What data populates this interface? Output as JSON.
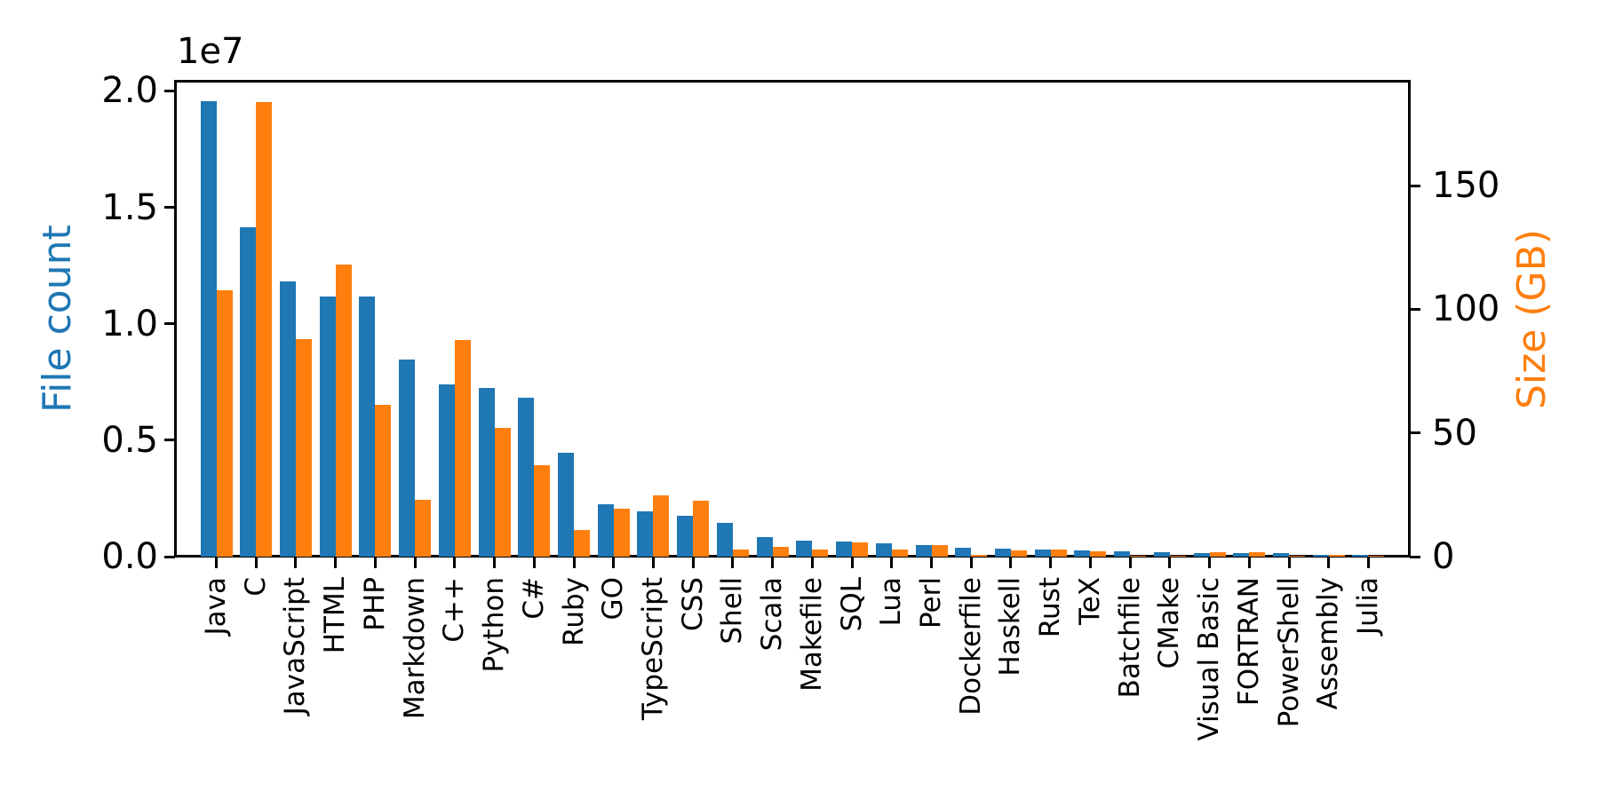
{
  "chart_data": {
    "type": "bar",
    "title": "",
    "categories": [
      "Java",
      "C",
      "JavaScript",
      "HTML",
      "PHP",
      "Markdown",
      "C++",
      "Python",
      "C#",
      "Ruby",
      "GO",
      "TypeScript",
      "CSS",
      "Shell",
      "Scala",
      "Makefile",
      "SQL",
      "Lua",
      "Perl",
      "Dockerfile",
      "Haskell",
      "Rust",
      "TeX",
      "Batchfile",
      "CMake",
      "Visual Basic",
      "FORTRAN",
      "PowerShell",
      "Assembly",
      "Julia"
    ],
    "series": [
      {
        "name": "File count",
        "axis": "left",
        "color": "#1f77b4",
        "values": [
          19548000,
          14143000,
          11840000,
          11179000,
          11178000,
          8465000,
          7381000,
          7227000,
          6812000,
          4473000,
          2265000,
          1940000,
          1752000,
          1432000,
          836000,
          679000,
          657000,
          579000,
          498000,
          367000,
          340000,
          322000,
          251000,
          237000,
          175000,
          156000,
          142000,
          137000,
          83000,
          58000
        ]
      },
      {
        "name": "Size (GB)",
        "axis": "right",
        "color": "#ff7f0e",
        "values": [
          107.7,
          183.8,
          87.8,
          118.1,
          61.4,
          23.1,
          87.7,
          52.0,
          36.8,
          10.9,
          19.3,
          24.6,
          22.6,
          3.0,
          3.9,
          2.9,
          5.7,
          2.8,
          4.7,
          0.6,
          2.4,
          2.7,
          2.2,
          0.4,
          0.5,
          1.9,
          1.8,
          0.4,
          0.9,
          0.3
        ]
      }
    ],
    "left_axis": {
      "label": "File count",
      "color": "#1f77b4",
      "offset_text": "1e7",
      "tick_labels": [
        "0.0",
        "0.5",
        "1.0",
        "1.5",
        "2.0"
      ],
      "tick_values": [
        0,
        5000000,
        10000000,
        15000000,
        20000000
      ],
      "range": [
        0,
        20400000
      ]
    },
    "right_axis": {
      "label": "Size (GB)",
      "color": "#ff7f0e",
      "tick_labels": [
        "0",
        "50",
        "100",
        "150"
      ],
      "tick_values": [
        0,
        50,
        100,
        150
      ],
      "range": [
        0,
        192
      ]
    },
    "x_axis": {
      "tick_rotation": 90
    },
    "grid": false,
    "legend": null,
    "spine_color": "#000000",
    "background": "#ffffff"
  }
}
